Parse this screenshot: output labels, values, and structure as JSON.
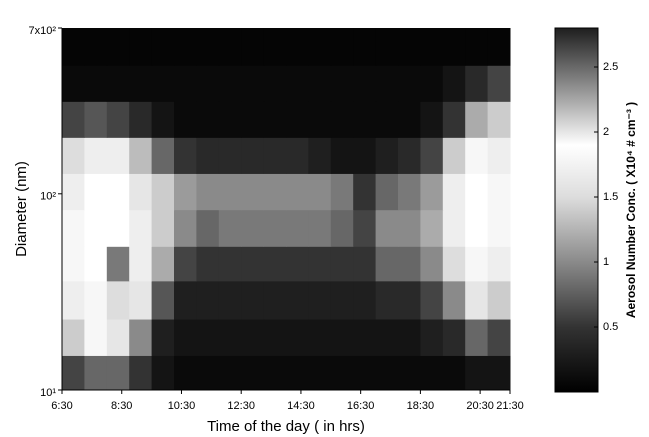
{
  "chart_data": {
    "type": "heatmap",
    "xlabel": "Time of the day ( in hrs)",
    "ylabel": "Diameter (nm)",
    "colorbar_label": "Aerosol Number Conc. ( X10⁴ # cm⁻³ )",
    "xlim": [
      6.5,
      21.5
    ],
    "xticks": [
      {
        "value": 6.5,
        "label": "6:30"
      },
      {
        "value": 8.5,
        "label": "8:30"
      },
      {
        "value": 10.5,
        "label": "10:30"
      },
      {
        "value": 12.5,
        "label": "12:30"
      },
      {
        "value": 14.5,
        "label": "14:30"
      },
      {
        "value": 16.5,
        "label": "16:30"
      },
      {
        "value": 18.5,
        "label": "18:30"
      },
      {
        "value": 20.5,
        "label": "20:30"
      },
      {
        "value": 21.5,
        "label": "21:30"
      }
    ],
    "ylim": [
      10,
      700
    ],
    "ylog": true,
    "yticks": [
      {
        "value": 10,
        "label": "10¹"
      },
      {
        "value": 100,
        "label": "10²"
      },
      {
        "value": 700,
        "label": "7x10²"
      }
    ],
    "zlim": [
      0,
      2.8
    ],
    "zticks": [
      0.5,
      1,
      1.5,
      2,
      2.5
    ],
    "colorscale": [
      [
        0,
        "#000000"
      ],
      [
        0.5,
        "#333333"
      ],
      [
        1.0,
        "#8a8a8a"
      ],
      [
        1.5,
        "#dddddd"
      ],
      [
        1.9,
        "#ffffff"
      ],
      [
        2.3,
        "#9a9a9a"
      ],
      [
        2.8,
        "#1e1e1e"
      ]
    ],
    "xbins": [
      6.5,
      7.25,
      8,
      8.75,
      9.5,
      10.25,
      11,
      11.75,
      12.5,
      13.25,
      14,
      14.75,
      15.5,
      16.25,
      17,
      17.75,
      18.5,
      19.25,
      20,
      20.75,
      21.5
    ],
    "ybins": [
      10,
      15,
      23,
      36,
      54,
      83,
      127,
      194,
      296,
      452,
      700
    ],
    "z": [
      [
        0.6,
        0.8,
        0.8,
        0.5,
        0.2,
        0.1,
        0.1,
        0.1,
        0.1,
        0.1,
        0.1,
        0.1,
        0.1,
        0.1,
        0.1,
        0.1,
        0.1,
        0.1,
        0.2,
        0.2
      ],
      [
        1.4,
        1.8,
        1.6,
        1.0,
        0.3,
        0.2,
        0.2,
        0.2,
        0.2,
        0.2,
        0.2,
        0.2,
        0.2,
        0.2,
        0.2,
        0.2,
        0.3,
        0.4,
        0.8,
        0.6
      ],
      [
        1.7,
        1.8,
        1.5,
        1.6,
        0.7,
        0.3,
        0.3,
        0.3,
        0.3,
        0.3,
        0.3,
        0.3,
        0.3,
        0.3,
        0.4,
        0.4,
        0.6,
        1.0,
        1.6,
        1.4
      ],
      [
        1.8,
        1.9,
        0.9,
        1.7,
        1.2,
        0.6,
        0.5,
        0.5,
        0.5,
        0.5,
        0.5,
        0.5,
        0.5,
        0.5,
        0.8,
        0.8,
        1.0,
        1.5,
        1.8,
        1.7
      ],
      [
        1.8,
        1.9,
        1.9,
        1.7,
        1.4,
        1.0,
        0.8,
        0.9,
        0.9,
        0.9,
        0.9,
        0.9,
        0.8,
        0.6,
        1.0,
        1.0,
        1.2,
        1.7,
        1.9,
        1.8
      ],
      [
        1.7,
        1.9,
        1.9,
        1.6,
        1.4,
        1.1,
        1.0,
        1.0,
        1.0,
        1.0,
        1.0,
        1.0,
        0.9,
        0.5,
        0.8,
        0.9,
        1.1,
        1.7,
        1.9,
        1.8
      ],
      [
        1.5,
        1.7,
        1.7,
        1.3,
        0.8,
        0.5,
        0.4,
        0.4,
        0.4,
        0.4,
        0.4,
        0.3,
        0.2,
        0.2,
        0.3,
        0.4,
        0.6,
        1.4,
        1.8,
        1.7
      ],
      [
        0.6,
        0.7,
        0.6,
        0.4,
        0.2,
        0.1,
        0.1,
        0.1,
        0.1,
        0.1,
        0.1,
        0.1,
        0.1,
        0.1,
        0.1,
        0.1,
        0.2,
        0.5,
        1.2,
        1.4
      ],
      [
        0.1,
        0.1,
        0.1,
        0.1,
        0.1,
        0.1,
        0.1,
        0.1,
        0.1,
        0.1,
        0.1,
        0.1,
        0.1,
        0.1,
        0.1,
        0.1,
        0.1,
        0.2,
        0.4,
        0.6
      ],
      [
        0.05,
        0.05,
        0.05,
        0.05,
        0.05,
        0.05,
        0.05,
        0.05,
        0.05,
        0.05,
        0.05,
        0.05,
        0.05,
        0.05,
        0.05,
        0.05,
        0.05,
        0.05,
        0.05,
        0.05
      ]
    ]
  }
}
